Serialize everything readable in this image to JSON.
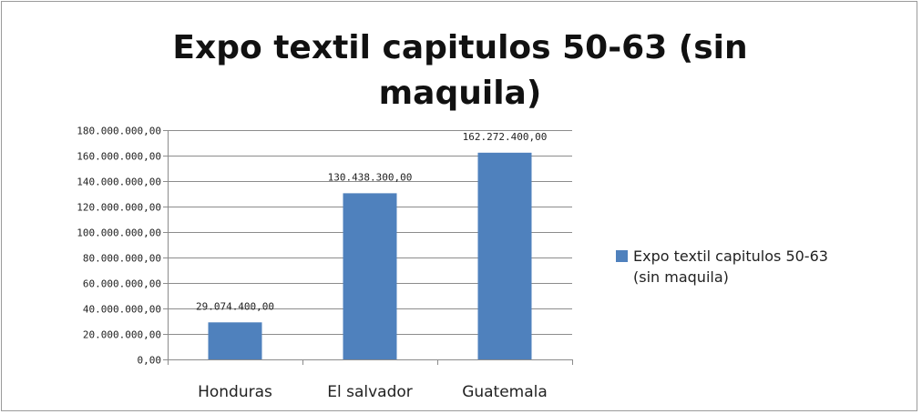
{
  "chart_data": {
    "type": "bar",
    "title": "Expo textil capitulos 50-63 (sin maquila)",
    "categories": [
      "Honduras",
      "El salvador",
      "Guatemala"
    ],
    "series": [
      {
        "name": "Expo textil capitulos 50-63 (sin maquila)",
        "values": [
          29074400,
          130438300,
          162272400
        ],
        "labels": [
          "29.074.400,00",
          "130.438.300,00",
          "162.272.400,00"
        ],
        "color": "#4F81BD"
      }
    ],
    "ylim": [
      0,
      180000000
    ],
    "yticks": [
      0,
      20000000,
      40000000,
      60000000,
      80000000,
      100000000,
      120000000,
      140000000,
      160000000,
      180000000
    ],
    "ytick_labels": [
      "0,00",
      "20.000.000,00",
      "40.000.000,00",
      "60.000.000,00",
      "80.000.000,00",
      "100.000.000,00",
      "120.000.000,00",
      "140.000.000,00",
      "160.000.000,00",
      "180.000.000,00"
    ],
    "xlabel": "",
    "ylabel": "",
    "grid": true,
    "legend": {
      "position": "right",
      "text": "Expo textil capitulos 50-63\n(sin maquila)"
    }
  }
}
